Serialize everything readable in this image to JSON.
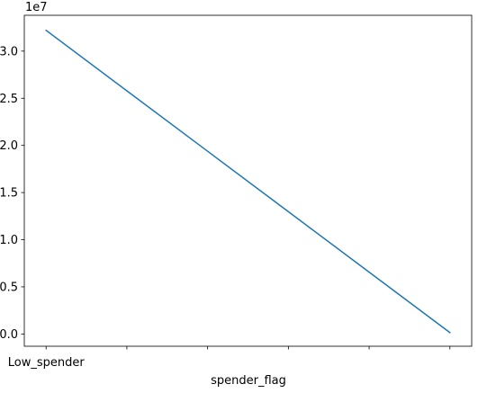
{
  "chart_data": {
    "type": "line",
    "x": [
      0,
      1,
      2,
      3,
      4,
      5
    ],
    "y": [
      32200000,
      25790000,
      19380000,
      12970000,
      6560000,
      150000
    ],
    "xtick_positions": [
      0,
      1,
      2,
      3,
      4,
      5
    ],
    "xtick_labels": [
      "Low_spender",
      "",
      "",
      "",
      "",
      ""
    ],
    "xlabel": "spender_flag",
    "ylabel": "",
    "xlim": [
      -0.27,
      5.27
    ],
    "ylim": [
      -1300000,
      33800000
    ],
    "yticks": [
      0,
      0.5,
      1.0,
      1.5,
      2.0,
      2.5,
      3.0
    ],
    "ytick_labels": [
      "0.0",
      "0.5",
      "1.0",
      "1.5",
      "2.0",
      "2.5",
      "3.0"
    ],
    "y_multiplier": 10000000,
    "offset_text": "1e7",
    "series_color": "#1f77b4",
    "grid": false
  }
}
